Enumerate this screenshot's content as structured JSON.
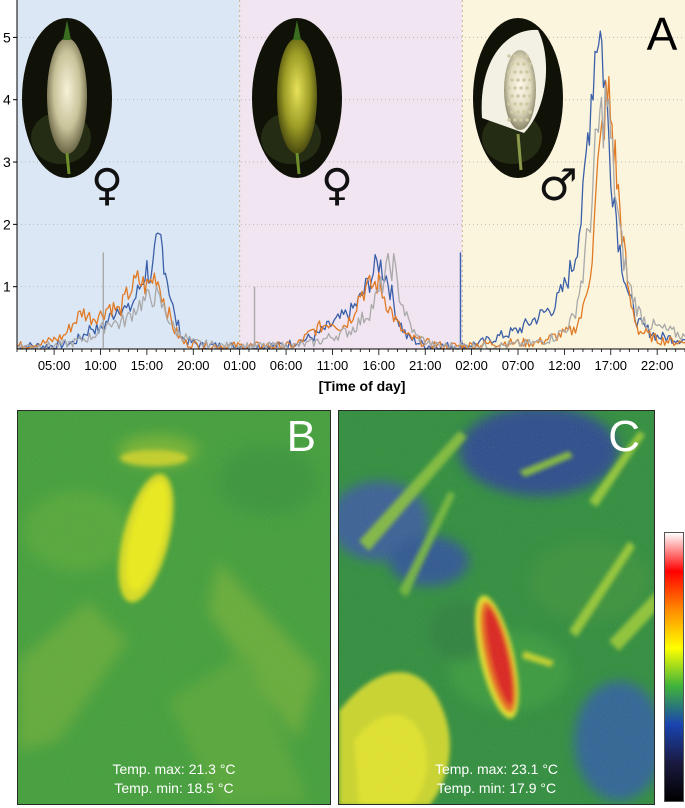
{
  "chart_data": {
    "type": "line",
    "panel_label": "A",
    "xlabel": "[Time of day]",
    "ylabel": "",
    "ylim": [
      0,
      5.6
    ],
    "yticks": [
      1,
      2,
      3,
      4,
      5
    ],
    "xrange": [
      0,
      72
    ],
    "grid": "horizontal-dotted",
    "x_tick_labels": [
      {
        "x": 4,
        "label": "05:00"
      },
      {
        "x": 9,
        "label": "10:00"
      },
      {
        "x": 14,
        "label": "15:00"
      },
      {
        "x": 19,
        "label": "20:00"
      },
      {
        "x": 24,
        "label": "01:00"
      },
      {
        "x": 29,
        "label": "06:00"
      },
      {
        "x": 34,
        "label": "11:00"
      },
      {
        "x": 39,
        "label": "16:00"
      },
      {
        "x": 44,
        "label": "21:00"
      },
      {
        "x": 49,
        "label": "02:00"
      },
      {
        "x": 54,
        "label": "07:00"
      },
      {
        "x": 59,
        "label": "12:00"
      },
      {
        "x": 64,
        "label": "17:00"
      },
      {
        "x": 69,
        "label": "22:00"
      }
    ],
    "phases": [
      {
        "from": 0,
        "to": 24,
        "color": "#dce7f5",
        "symbol": "♀",
        "flower": "pale"
      },
      {
        "from": 24,
        "to": 48,
        "color": "#f1e5f1",
        "symbol": "♀",
        "flower": "green"
      },
      {
        "from": 48,
        "to": 72,
        "color": "#fbf5de",
        "symbol": "♂",
        "flower": "spadix"
      }
    ],
    "series": [
      {
        "color": "#3b5fa8",
        "points": [
          [
            0,
            0.05
          ],
          [
            4,
            0.05
          ],
          [
            6,
            0.1
          ],
          [
            7,
            0.2
          ],
          [
            8,
            0.35
          ],
          [
            9,
            0.3
          ],
          [
            10,
            0.5
          ],
          [
            11,
            0.7
          ],
          [
            12,
            0.6
          ],
          [
            13,
            0.9
          ],
          [
            14,
            1.3
          ],
          [
            14.5,
            1.1
          ],
          [
            15,
            1.6
          ],
          [
            15.5,
            1.75
          ],
          [
            16,
            1.3
          ],
          [
            17,
            0.5
          ],
          [
            18,
            0.15
          ],
          [
            20,
            0.05
          ],
          [
            24,
            0.05
          ],
          [
            28,
            0.05
          ],
          [
            30,
            0.1
          ],
          [
            32,
            0.2
          ],
          [
            34,
            0.4
          ],
          [
            35,
            0.5
          ],
          [
            36,
            0.6
          ],
          [
            37,
            0.8
          ],
          [
            38,
            1.1
          ],
          [
            39,
            1.4
          ],
          [
            40,
            1.1
          ],
          [
            41,
            0.5
          ],
          [
            42,
            0.2
          ],
          [
            44,
            0.05
          ],
          [
            46,
            0.05
          ],
          [
            47,
            0.05
          ],
          [
            48,
            0.05
          ],
          [
            50,
            0.1
          ],
          [
            52,
            0.2
          ],
          [
            54,
            0.3
          ],
          [
            56,
            0.5
          ],
          [
            58,
            0.7
          ],
          [
            59,
            1.0
          ],
          [
            60,
            1.4
          ],
          [
            61,
            2.3
          ],
          [
            61.7,
            3.8
          ],
          [
            62.3,
            4.8
          ],
          [
            62.7,
            5.3
          ],
          [
            63.2,
            4.6
          ],
          [
            64,
            3.0
          ],
          [
            65,
            1.6
          ],
          [
            66,
            0.8
          ],
          [
            67,
            0.4
          ],
          [
            69,
            0.2
          ],
          [
            72,
            0.15
          ]
        ]
      },
      {
        "color": "#e07a25",
        "points": [
          [
            0,
            0.05
          ],
          [
            3,
            0.1
          ],
          [
            5,
            0.2
          ],
          [
            6,
            0.4
          ],
          [
            7,
            0.6
          ],
          [
            8,
            0.5
          ],
          [
            9,
            0.55
          ],
          [
            10,
            0.7
          ],
          [
            11,
            0.6
          ],
          [
            12,
            0.9
          ],
          [
            13,
            1.1
          ],
          [
            14,
            1.0
          ],
          [
            15,
            1.2
          ],
          [
            16,
            0.7
          ],
          [
            17,
            0.3
          ],
          [
            18,
            0.1
          ],
          [
            20,
            0.05
          ],
          [
            24,
            0.05
          ],
          [
            28,
            0.05
          ],
          [
            30,
            0.05
          ],
          [
            32,
            0.3
          ],
          [
            34,
            0.45
          ],
          [
            35,
            0.35
          ],
          [
            36,
            0.5
          ],
          [
            37,
            0.9
          ],
          [
            38,
            1.0
          ],
          [
            39,
            1.05
          ],
          [
            40,
            0.7
          ],
          [
            41,
            0.4
          ],
          [
            42,
            0.2
          ],
          [
            44,
            0.1
          ],
          [
            46,
            0.05
          ],
          [
            48,
            0.05
          ],
          [
            52,
            0.1
          ],
          [
            56,
            0.1
          ],
          [
            58,
            0.2
          ],
          [
            60,
            0.3
          ],
          [
            61,
            0.6
          ],
          [
            62,
            1.5
          ],
          [
            62.6,
            2.8
          ],
          [
            63.3,
            3.8
          ],
          [
            63.8,
            4.0
          ],
          [
            64.3,
            3.3
          ],
          [
            65,
            2.2
          ],
          [
            66,
            0.8
          ],
          [
            67,
            0.3
          ],
          [
            69,
            0.15
          ],
          [
            72,
            0.1
          ]
        ]
      },
      {
        "color": "#a9a9a9",
        "points": [
          [
            0,
            0.05
          ],
          [
            4,
            0.05
          ],
          [
            6,
            0.1
          ],
          [
            8,
            0.2
          ],
          [
            9,
            0.3
          ],
          [
            10,
            0.45
          ],
          [
            11,
            0.4
          ],
          [
            12,
            0.5
          ],
          [
            13,
            0.7
          ],
          [
            14,
            0.8
          ],
          [
            15,
            0.85
          ],
          [
            16,
            0.6
          ],
          [
            17,
            0.3
          ],
          [
            19,
            0.1
          ],
          [
            22,
            0.05
          ],
          [
            24,
            0.05
          ],
          [
            28,
            0.05
          ],
          [
            30,
            0.05
          ],
          [
            32,
            0.1
          ],
          [
            34,
            0.2
          ],
          [
            36,
            0.3
          ],
          [
            38,
            0.6
          ],
          [
            39,
            0.9
          ],
          [
            40,
            1.3
          ],
          [
            40.6,
            1.35
          ],
          [
            41,
            1.0
          ],
          [
            42,
            0.5
          ],
          [
            43,
            0.2
          ],
          [
            45,
            0.05
          ],
          [
            48,
            0.05
          ],
          [
            52,
            0.05
          ],
          [
            56,
            0.1
          ],
          [
            58,
            0.2
          ],
          [
            59,
            0.3
          ],
          [
            60,
            0.5
          ],
          [
            61,
            1.2
          ],
          [
            62,
            2.4
          ],
          [
            62.5,
            3.4
          ],
          [
            63,
            3.7
          ],
          [
            63.6,
            4.0
          ],
          [
            64.2,
            3.0
          ],
          [
            65,
            1.8
          ],
          [
            66,
            1.0
          ],
          [
            67,
            0.6
          ],
          [
            68,
            0.4
          ],
          [
            70,
            0.3
          ],
          [
            72,
            0.2
          ]
        ]
      }
    ],
    "spikes": [
      {
        "x": 9.3,
        "y": 1.55,
        "color": "#a9a9a9"
      },
      {
        "x": 25.6,
        "y": 1.0,
        "color": "#a9a9a9"
      },
      {
        "x": 47.8,
        "y": 1.55,
        "color": "#3b5fa8"
      }
    ]
  },
  "thermal": {
    "b": {
      "label": "B",
      "temp_max": "Temp. max: 21.3 °C",
      "temp_min": "Temp. min: 18.5 °C"
    },
    "c": {
      "label": "C",
      "temp_max": "Temp. max: 23.1 °C",
      "temp_min": "Temp. min: 17.9 °C"
    }
  },
  "colorbar": [
    "#ffffff",
    "#ff0000",
    "#ff8a00",
    "#ffff00",
    "#3fb33a",
    "#1a44b0",
    "#1a1a40",
    "#000000"
  ],
  "colors": {
    "thermal_green": "#3e9a3c",
    "thermal_yellow": "#e8e51c",
    "thermal_blue": "#3c3fa6",
    "thermal_red": "#e0201a"
  }
}
